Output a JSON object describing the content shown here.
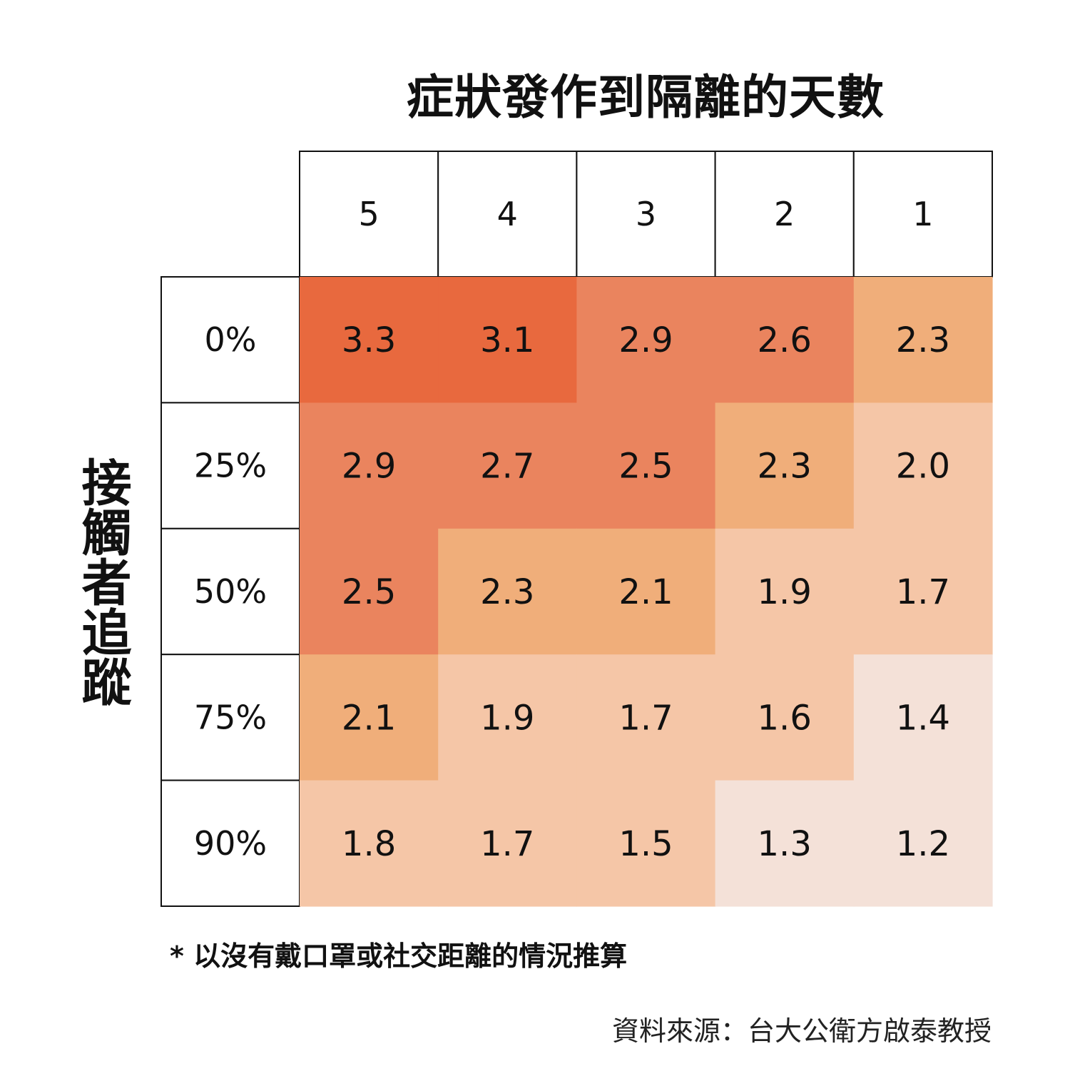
{
  "chart_data": {
    "type": "heatmap",
    "title": "症狀發作到隔離的天數",
    "ylabel": "接觸者追蹤",
    "x_categories": [
      "5",
      "4",
      "3",
      "2",
      "1"
    ],
    "y_categories": [
      "0%",
      "25%",
      "50%",
      "75%",
      "90%"
    ],
    "values": [
      [
        "3.3",
        "3.1",
        "2.9",
        "2.6",
        "2.3"
      ],
      [
        "2.9",
        "2.7",
        "2.5",
        "2.3",
        "2.0"
      ],
      [
        "2.5",
        "2.3",
        "2.1",
        "1.9",
        "1.7"
      ],
      [
        "2.1",
        "1.9",
        "1.7",
        "1.6",
        "1.4"
      ],
      [
        "1.8",
        "1.7",
        "1.5",
        "1.3",
        "1.2"
      ]
    ],
    "color_scale": [
      {
        "min": 3.0,
        "color": "#e8693e"
      },
      {
        "min": 2.4,
        "color": "#ea845e"
      },
      {
        "min": 2.1,
        "color": "#f0ae7a"
      },
      {
        "min": 1.5,
        "color": "#f5c6a7"
      },
      {
        "min": 0.0,
        "color": "#f4e1d8"
      }
    ],
    "note": "* 以沒有戴口罩或社交距離的情況推算",
    "source": "資料來源：台大公衛方啟泰教授"
  }
}
